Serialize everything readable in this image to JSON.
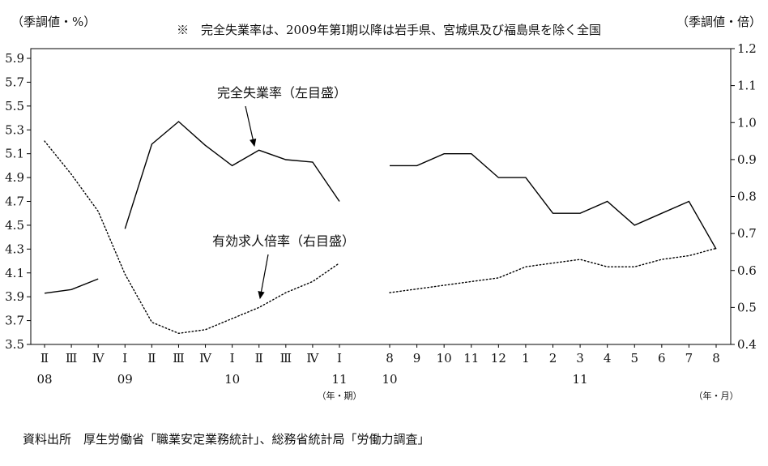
{
  "header": {
    "left_axis_unit": "（季調値・%）",
    "note": "※　完全失業率は、2009年第Ⅰ期以降は岩手県、宮城県及び福島県を除く全国",
    "right_axis_unit": "（季調値・倍）"
  },
  "footer": {
    "source": "資料出所　厚生労働省「職業安定業務統計」、総務省統計局「労働力調査」"
  },
  "chart_data": {
    "type": "line",
    "line_color": "#000000",
    "left_axis": {
      "unit": "季調値・%",
      "min": 3.5,
      "max": 5.9,
      "step": 0.2,
      "ticks": [
        "5.9",
        "5.7",
        "5.5",
        "5.3",
        "5.1",
        "4.9",
        "4.7",
        "4.5",
        "4.3",
        "4.1",
        "3.9",
        "3.7",
        "3.5"
      ]
    },
    "right_axis": {
      "unit": "季調値・倍",
      "min": 0.4,
      "max": 1.2,
      "step": 0.1,
      "ticks": [
        "1.2",
        "1.1",
        "1.0",
        "0.9",
        "0.8",
        "0.7",
        "0.6",
        "0.5",
        "0.4"
      ]
    },
    "panels": [
      {
        "id": "quarterly",
        "x_labels": [
          "Ⅱ",
          "Ⅲ",
          "Ⅳ",
          "Ⅰ",
          "Ⅱ",
          "Ⅲ",
          "Ⅳ",
          "Ⅰ",
          "Ⅱ",
          "Ⅲ",
          "Ⅳ",
          "Ⅰ"
        ],
        "years": [
          {
            "label": "08",
            "tick": 0
          },
          {
            "label": "09",
            "tick": 3
          },
          {
            "label": "10",
            "tick": 7
          },
          {
            "label": "11",
            "tick": 11
          }
        ],
        "caption": "（年・期）"
      },
      {
        "id": "monthly",
        "x_labels": [
          "8",
          "9",
          "10",
          "11",
          "12",
          "1",
          "2",
          "3",
          "4",
          "5",
          "6",
          "7",
          "8"
        ],
        "years": [
          {
            "label": "10",
            "tick": 0
          },
          {
            "label": "11",
            "tick": 7
          }
        ],
        "caption": "（年・月）"
      }
    ],
    "series": [
      {
        "key": "unemployment-rate",
        "name": "完全失業率（左目盛）",
        "axis": "left",
        "style": "solid",
        "data": {
          "quarterly": [
            {
              "start": 0,
              "values": [
                3.93,
                3.96,
                4.05
              ]
            },
            {
              "start": 3,
              "values": [
                4.47,
                5.18,
                5.37,
                5.17,
                5.0,
                5.13,
                5.05,
                5.03,
                4.7
              ]
            }
          ],
          "monthly": [
            {
              "start": 0,
              "values": [
                5.0,
                5.0,
                5.1,
                5.1,
                4.9,
                4.9,
                4.6,
                4.6,
                4.7,
                4.5,
                4.6,
                4.7,
                4.3
              ]
            }
          ]
        }
      },
      {
        "key": "job-openings-ratio",
        "name": "有効求人倍率（右目盛）",
        "axis": "right",
        "style": "dotted",
        "data": {
          "quarterly": [
            {
              "start": 0,
              "values": [
                0.95,
                0.86,
                0.76,
                0.59,
                0.46,
                0.43,
                0.44,
                0.47,
                0.5,
                0.54,
                0.57,
                0.62
              ]
            }
          ],
          "monthly": [
            {
              "start": 0,
              "values": [
                0.54,
                0.55,
                0.56,
                0.57,
                0.58,
                0.61,
                0.62,
                0.63,
                0.61,
                0.61,
                0.63,
                0.64,
                0.66
              ]
            }
          ]
        }
      }
    ]
  }
}
